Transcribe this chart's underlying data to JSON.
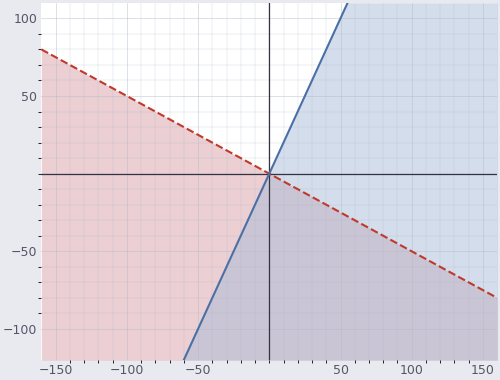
{
  "xlim": [
    -160,
    160
  ],
  "ylim": [
    -120,
    110
  ],
  "xticks": [
    -150,
    -100,
    -50,
    50,
    100,
    150
  ],
  "yticks": [
    -100,
    -50,
    50,
    100
  ],
  "line1_slope": -0.5,
  "line1_intercept": 0,
  "line1_color": "#c0392b",
  "line1_linewidth": 1.5,
  "line1_fill_color": "#d9a0a8",
  "line1_fill_alpha": 0.5,
  "line2_slope": 2,
  "line2_intercept": 0,
  "line2_color": "#4a6fa5",
  "line2_linewidth": 1.5,
  "line2_fill_color": "#a8bcd8",
  "line2_fill_alpha": 0.5,
  "grid_color": "#b0b8c8",
  "grid_alpha": 0.6,
  "bg_color": "#ffffff",
  "fig_bg_color": "#e8eaf0",
  "figsize": [
    5.0,
    3.8
  ],
  "dpi": 100,
  "tick_fontsize": 9,
  "tick_color": "#555566"
}
